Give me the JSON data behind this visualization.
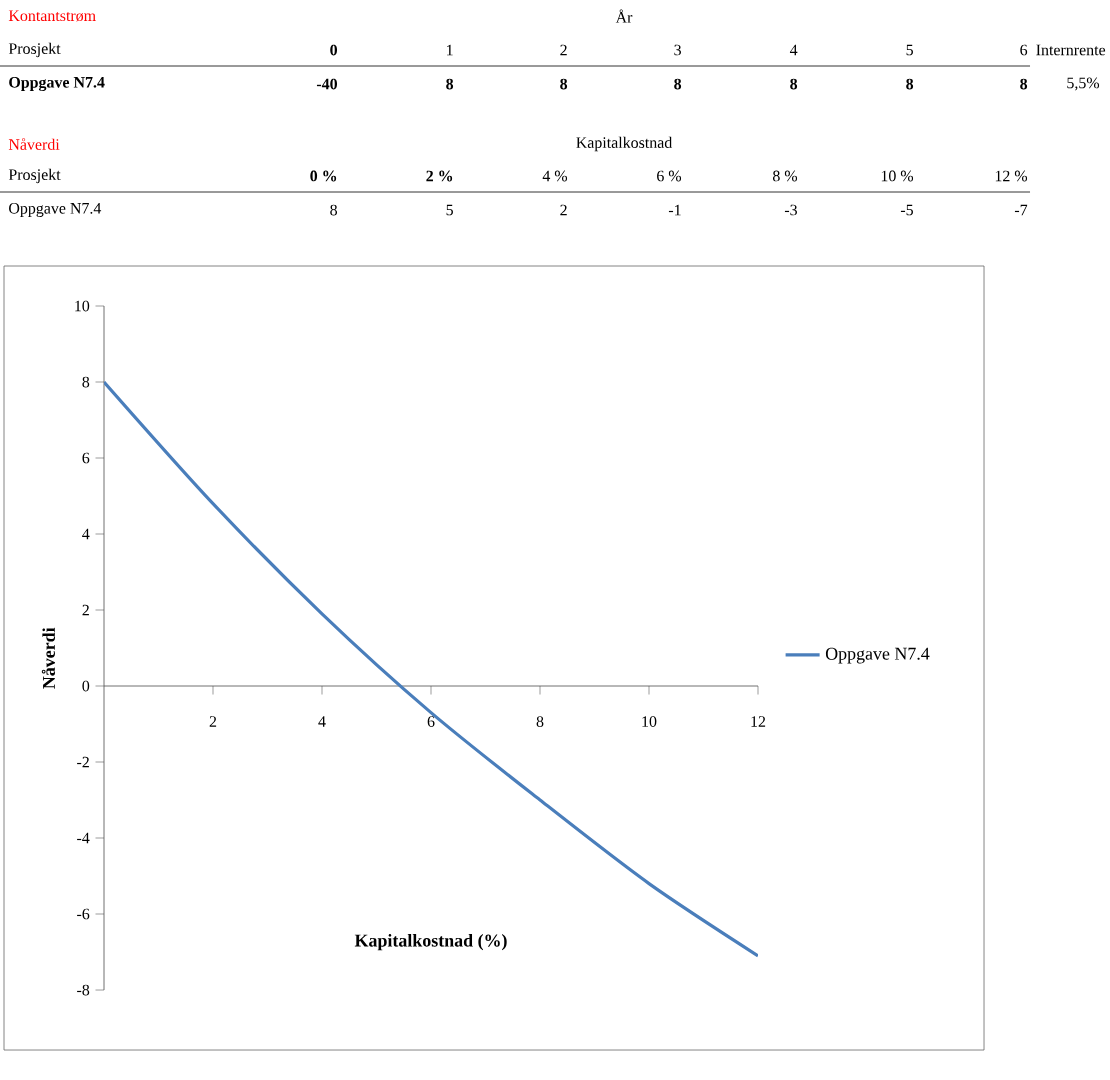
{
  "chart_data": {
    "type": "line",
    "xlabel": "Kapitalkostnad  (%)",
    "ylabel": "Nåverdi",
    "x": [
      0,
      2,
      4,
      6,
      8,
      10,
      12
    ],
    "series": [
      {
        "name": "Oppgave N7.4",
        "color": "#4a7ebb",
        "values": [
          8,
          4.8,
          1.9,
          -0.7,
          -3,
          -5.2,
          -7.1
        ]
      }
    ],
    "xlim": [
      0,
      12
    ],
    "xticks": [
      2,
      4,
      6,
      8,
      10,
      12
    ],
    "ylim": [
      -8,
      10
    ],
    "yticks": [
      -8,
      -6,
      -4,
      -2,
      0,
      2,
      4,
      6,
      8,
      10
    ],
    "legend": "right",
    "annotations": [
      "Kontantstrøm",
      "År",
      "Prosjekt",
      "0",
      "1",
      "2",
      "3",
      "4",
      "5",
      "6",
      "Internrente",
      "Oppgave N7.4",
      "-40",
      "8",
      "8",
      "8",
      "8",
      "8",
      "8",
      "5,5%",
      "Nåverdi",
      "Kapitalkostnad",
      "Prosjekt",
      "0 %",
      "2 %",
      "4 %",
      "6 %",
      "8 %",
      "10 %",
      "12 %",
      "Oppgave N7.4",
      "8",
      "5",
      "2",
      "-1",
      "-3",
      "-5",
      "-7"
    ]
  }
}
